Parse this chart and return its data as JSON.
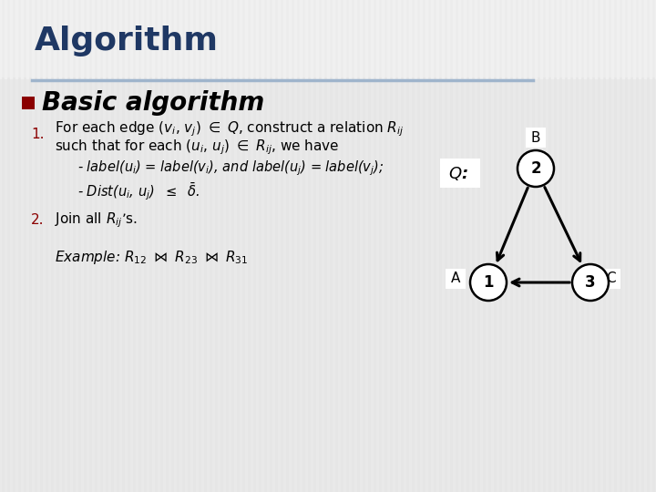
{
  "title": "Algorithm",
  "title_color": "#1F3864",
  "bg_color": "#E8E8E8",
  "stripe_color_light": "#F0F0F0",
  "stripe_color_dark": "#E0E0E0",
  "header_line_color": "#8EAACC",
  "bullet_color": "#8B0000",
  "bullet_text": "Basic algorithm",
  "item1_num": "1.",
  "item1_num_color": "#8B0000",
  "item1_line1": "For each edge ($v_i$, $v_j$) $\\in$ $Q$, construct a relation $R_{ij}$",
  "item1_line2": "such that for each ($u_i$, $u_j$) $\\in$ $R_{ij}$, we have",
  "item1_sub1": "- $label$($u_i$) = $label$($v_i$), and $label$($u_j$) = $label$($v_j$);",
  "item1_sub2": "- $Dist$($u_i$, $u_j$)  $\\leq$  $\\bar{\\delta}$.",
  "item2_num": "2.",
  "item2_num_color": "#8B0000",
  "item2_text": "Join all $R_{ij}$’s.",
  "example_text": "Example: $R_{12}$ $\\bowtie$ $R_{23}$ $\\bowtie$ $R_{31}$",
  "graph_label": "$Q$:",
  "node_A_label": "A",
  "node_B_label": "B",
  "node_C_label": "C",
  "node_1_label": "1",
  "node_2_label": "2",
  "node_3_label": "3"
}
